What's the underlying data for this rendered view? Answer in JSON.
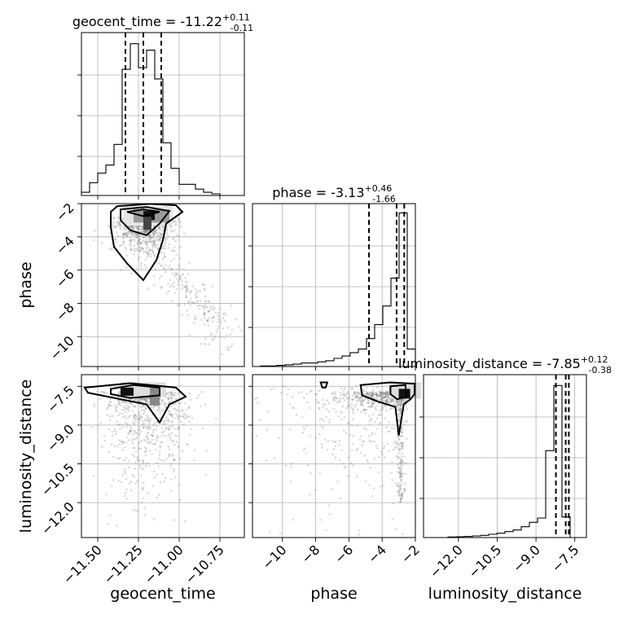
{
  "chart_data": {
    "type": "corner",
    "parameters": [
      "geocent_time",
      "phase",
      "luminosity_distance"
    ],
    "titles": [
      {
        "name": "geocent_time",
        "median": "-11.22",
        "plus": "+0.11",
        "minus": "-0.11"
      },
      {
        "name": "phase",
        "median": "-3.13",
        "plus": "+0.46",
        "minus": "-1.66"
      },
      {
        "name": "luminosity_distance",
        "median": "-7.85",
        "plus": "+0.12",
        "minus": "-0.38"
      }
    ],
    "ranges": {
      "geocent_time": [
        -11.6,
        -10.6
      ],
      "phase": [
        -11.8,
        -2.0
      ],
      "luminosity_distance": [
        -13.35,
        -7.05
      ]
    },
    "ticks": {
      "geocent_time": {
        "values": [
          -11.5,
          -11.25,
          -11.0,
          -10.75
        ],
        "labels": [
          "−11.50",
          "−11.25",
          "−11.00",
          "−10.75"
        ]
      },
      "phase": {
        "values": [
          -10,
          -8,
          -6,
          -4,
          -2
        ],
        "labels": [
          "−10",
          "−8",
          "−6",
          "−4",
          "−2"
        ]
      },
      "luminosity_distance": {
        "values": [
          -12.0,
          -10.5,
          -9.0,
          -7.5
        ],
        "labels": [
          "−12.0",
          "−10.5",
          "−9.0",
          "−7.5"
        ]
      }
    },
    "histograms": {
      "geocent_time": {
        "edges": [
          -11.6,
          -11.55,
          -11.5,
          -11.45,
          -11.4,
          -11.35,
          -11.3,
          -11.25,
          -11.2,
          -11.15,
          -11.1,
          -11.05,
          -11.0,
          -10.95,
          -10.9,
          -10.85,
          -10.8,
          -10.75,
          -10.7,
          -10.65,
          -10.6
        ],
        "counts": [
          2,
          8,
          14,
          19,
          32,
          79,
          95,
          80,
          91,
          73,
          33,
          17,
          7,
          7,
          4,
          2,
          1,
          0,
          0,
          0
        ],
        "quantiles": [
          -11.33,
          -11.22,
          -11.11
        ],
        "ymax": 102
      },
      "phase": {
        "edges": [
          -11.8,
          -11.31,
          -10.82,
          -10.33,
          -9.84,
          -9.35,
          -8.86,
          -8.37,
          -7.88,
          -7.39,
          -6.9,
          -6.41,
          -5.92,
          -5.43,
          -4.94,
          -4.45,
          -3.96,
          -3.47,
          -2.98,
          -2.49,
          -2.0
        ],
        "counts": [
          0,
          0.5,
          0.5,
          1,
          1.5,
          2,
          3,
          3,
          4,
          5,
          7,
          9,
          12,
          15,
          24,
          36,
          52,
          76,
          132,
          15
        ],
        "quantiles": [
          -4.79,
          -3.13,
          -2.67
        ],
        "ymax": 140
      },
      "luminosity_distance": {
        "edges": [
          -13.35,
          -13.035,
          -12.72,
          -12.405,
          -12.09,
          -11.775,
          -11.46,
          -11.145,
          -10.83,
          -10.515,
          -10.2,
          -9.885,
          -9.57,
          -9.255,
          -8.94,
          -8.625,
          -8.31,
          -7.995,
          -7.68,
          -7.365,
          -7.05
        ],
        "counts": [
          0,
          0,
          0,
          0.5,
          0.7,
          1,
          1.5,
          2,
          3,
          4,
          5.5,
          7,
          10,
          14,
          18,
          80,
          140,
          19,
          0,
          0
        ],
        "quantiles": [
          -8.23,
          -7.85,
          -7.73
        ],
        "ymax": 150
      }
    },
    "grid": true
  }
}
